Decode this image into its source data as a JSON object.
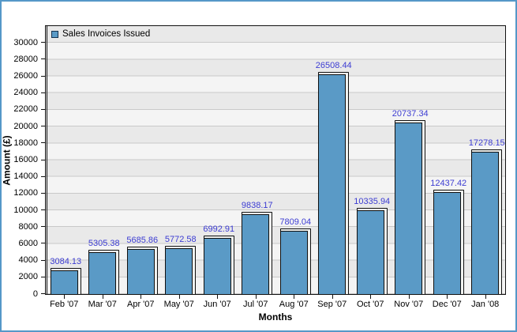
{
  "chart_data": {
    "type": "bar",
    "title": "",
    "xlabel": "Months",
    "ylabel": "Amount (£)",
    "legend": {
      "label": "Sales Invoices Issued",
      "position": "top-left-inside"
    },
    "categories": [
      "Feb '07",
      "Mar '07",
      "Apr '07",
      "May '07",
      "Jun '07",
      "Jul '07",
      "Aug '07",
      "Sep '07",
      "Oct '07",
      "Nov '07",
      "Dec '07",
      "Jan '08"
    ],
    "series": [
      {
        "name": "Sales Invoices Issued",
        "values": [
          3084.13,
          5305.38,
          5685.86,
          5772.58,
          6992.91,
          9838.17,
          7809.04,
          26508.44,
          10335.94,
          20737.34,
          12437.42,
          17278.15
        ]
      }
    ],
    "value_labels_decimals": 2,
    "ylim": [
      0,
      32000
    ],
    "yticks": [
      0,
      2000,
      4000,
      6000,
      8000,
      10000,
      12000,
      14000,
      16000,
      18000,
      20000,
      22000,
      24000,
      26000,
      28000,
      30000
    ],
    "grid": "horizontal-alternating-bands",
    "colors": {
      "bar_fill": "#5a9ac6",
      "bar_border": "#101010",
      "bar_highlight": "#eff1ef",
      "value_label": "#3c3cd2",
      "band_light": "#f4f4f4",
      "band_dark": "#e9e9e9",
      "gridline": "#c9c9c9",
      "frame_border": "#5598c8",
      "text": "#000000"
    }
  }
}
